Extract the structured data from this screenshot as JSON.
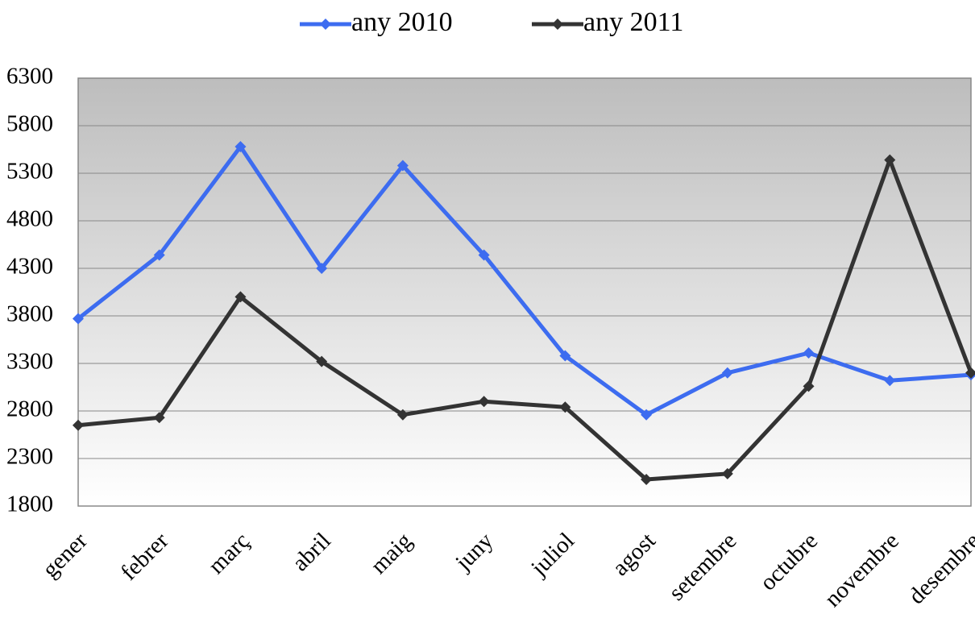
{
  "chart_data": {
    "type": "line",
    "categories": [
      "gener",
      "febrer",
      "març",
      "abril",
      "maig",
      "juny",
      "juliol",
      "agost",
      "setembre",
      "octubre",
      "novembre",
      "desembre"
    ],
    "series": [
      {
        "name": "any 2010",
        "color": "#3d6cf0",
        "values": [
          3770,
          4440,
          5580,
          4300,
          5380,
          4440,
          3380,
          2760,
          3200,
          3410,
          3120,
          3180
        ]
      },
      {
        "name": "any 2011",
        "color": "#333333",
        "values": [
          2650,
          2730,
          4000,
          3320,
          2760,
          2900,
          2840,
          2080,
          2140,
          3060,
          5440,
          3200
        ]
      }
    ],
    "ylim": [
      1800,
      6300
    ],
    "yticks": [
      1800,
      2300,
      2800,
      3300,
      3800,
      4300,
      4800,
      5300,
      5800,
      6300
    ],
    "grid": true,
    "legend": "top"
  }
}
